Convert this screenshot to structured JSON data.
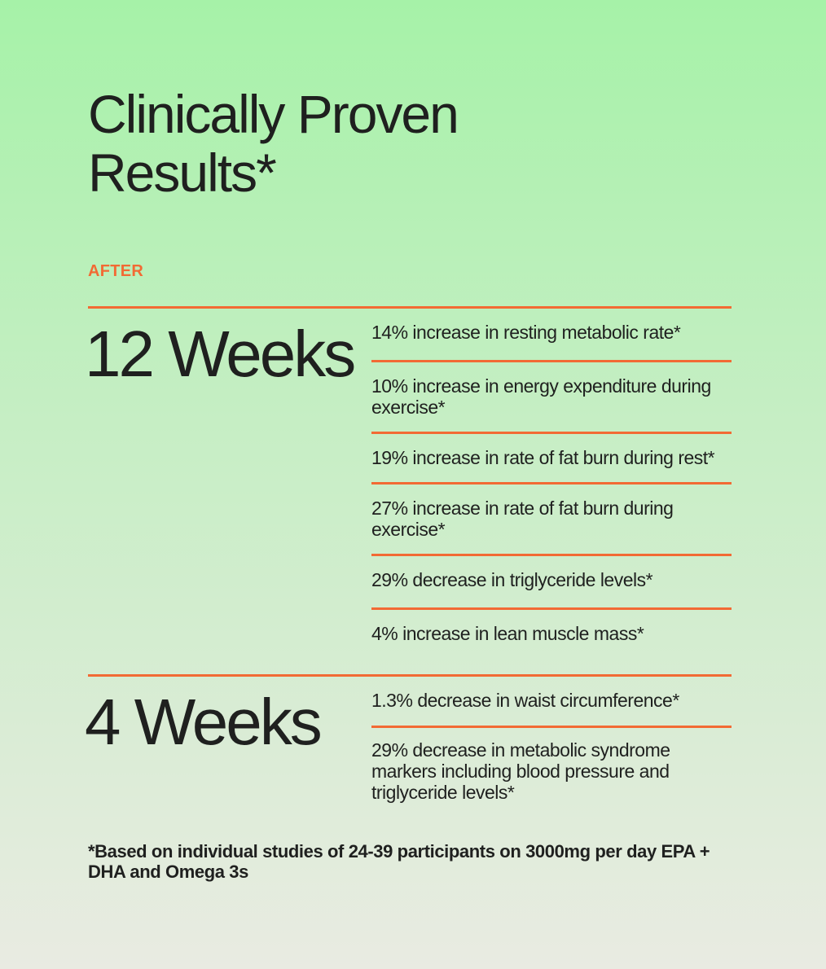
{
  "header": {
    "title_line1": "Clinically Proven",
    "title_line2": "Results*"
  },
  "eyebrow": "AFTER",
  "sections": [
    {
      "period": "12 Weeks",
      "items": [
        "14% increase in resting metabolic rate*",
        "10% increase in energy expenditure during exercise*",
        "19% increase in rate of fat burn during rest*",
        "27% increase in rate of fat burn during exercise*",
        "29% decrease in triglyceride levels*",
        "4% increase in lean muscle mass*"
      ]
    },
    {
      "period": "4 Weeks",
      "items": [
        "1.3% decrease in waist circumference*",
        "29% decrease in metabolic syndrome markers including blood pressure and triglyceride levels*"
      ]
    }
  ],
  "footnote": "*Based on individual studies of 24-39 participants on 3000mg per day EPA + DHA and Omega 3s",
  "colors": {
    "accent": "#f26a34",
    "text": "#1f201f",
    "background_top": "#a6f2a8",
    "background_bottom": "#e9ebe2"
  }
}
